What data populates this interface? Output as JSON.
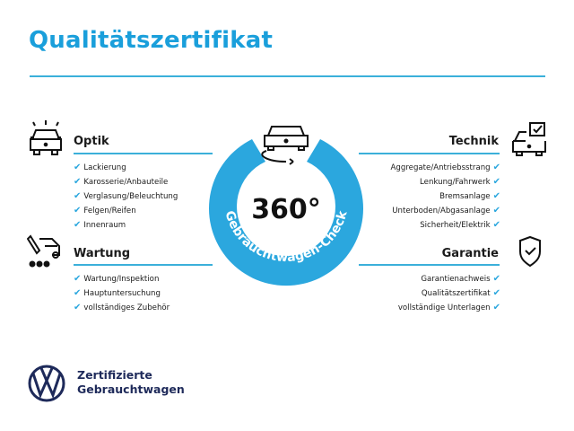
{
  "title": "Qualitätszertifikat",
  "colors": {
    "accent": "#1a9fdb",
    "line": "#3bb0da",
    "brand": "#1e2a5a"
  },
  "center": {
    "big_text": "360°",
    "arc_text": "Gebrauchtwagen-Check",
    "icon": "car-rotate-icon"
  },
  "sections": {
    "optik": {
      "title": "Optik",
      "icon": "car-lights-icon",
      "items": [
        "Lackierung",
        "Karosserie/Anbauteile",
        "Verglasung/Beleuchtung",
        "Felgen/Reifen",
        "Innenraum"
      ]
    },
    "wartung": {
      "title": "Wartung",
      "icon": "service-van-icon",
      "items": [
        "Wartung/Inspektion",
        "Hauptuntersuchung",
        "vollständiges Zubehör"
      ]
    },
    "technik": {
      "title": "Technik",
      "icon": "car-checkbox-icon",
      "items": [
        "Aggregate/Antriebsstrang",
        "Lenkung/Fahrwerk",
        "Bremsanlage",
        "Unterboden/Abgasanlage",
        "Sicherheit/Elektrik"
      ]
    },
    "garantie": {
      "title": "Garantie",
      "icon": "shield-check-icon",
      "items": [
        "Garantienachweis",
        "Qualitätszertifikat",
        "vollständige Unterlagen"
      ]
    }
  },
  "check_glyph": "✔",
  "footer": {
    "line1": "Zertifizierte",
    "line2": "Gebrauchtwagen",
    "logo": "vw-logo"
  }
}
